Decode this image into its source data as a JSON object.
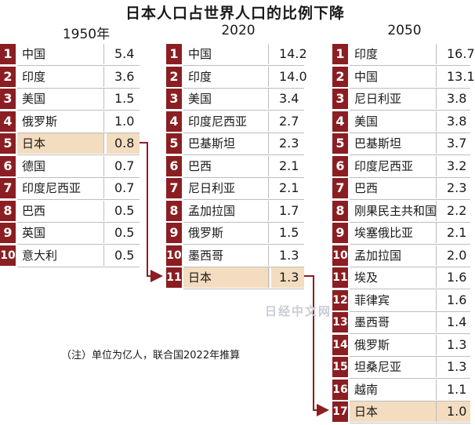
{
  "title": "日本人口占世界人口的比例下降",
  "columns": [
    {
      "year": "1950年",
      "rows": [
        {
          "rank": "1",
          "country": "中国",
          "value": "5.4"
        },
        {
          "rank": "2",
          "country": "印度",
          "value": "3.6"
        },
        {
          "rank": "3",
          "country": "美国",
          "value": "1.5"
        },
        {
          "rank": "4",
          "country": "俄罗斯",
          "value": "1.0"
        },
        {
          "rank": "5",
          "country": "日本",
          "value": "0.8",
          "highlight": true
        },
        {
          "rank": "6",
          "country": "德国",
          "value": "0.7"
        },
        {
          "rank": "7",
          "country": "印度尼西亚",
          "value": "0.7"
        },
        {
          "rank": "8",
          "country": "巴西",
          "value": "0.5"
        },
        {
          "rank": "9",
          "country": "英国",
          "value": "0.5"
        },
        {
          "rank": "10",
          "country": "意大利",
          "value": "0.5"
        }
      ]
    },
    {
      "year": "2020",
      "rows": [
        {
          "rank": "1",
          "country": "中国",
          "value": "14.2"
        },
        {
          "rank": "2",
          "country": "印度",
          "value": "14.0"
        },
        {
          "rank": "3",
          "country": "美国",
          "value": "3.4"
        },
        {
          "rank": "4",
          "country": "印度尼西亚",
          "value": "2.7"
        },
        {
          "rank": "5",
          "country": "巴基斯坦",
          "value": "2.3"
        },
        {
          "rank": "6",
          "country": "巴西",
          "value": "2.1"
        },
        {
          "rank": "7",
          "country": "尼日利亚",
          "value": "2.1"
        },
        {
          "rank": "8",
          "country": "孟加拉国",
          "value": "1.7"
        },
        {
          "rank": "9",
          "country": "俄罗斯",
          "value": "1.5"
        },
        {
          "rank": "10",
          "country": "墨西哥",
          "value": "1.3"
        },
        {
          "rank": "11",
          "country": "日本",
          "value": "1.3",
          "highlight": true
        }
      ]
    },
    {
      "year": "2050",
      "rows": [
        {
          "rank": "1",
          "country": "印度",
          "value": "16.7"
        },
        {
          "rank": "2",
          "country": "中国",
          "value": "13.1"
        },
        {
          "rank": "3",
          "country": "尼日利亚",
          "value": "3.8"
        },
        {
          "rank": "4",
          "country": "美国",
          "value": "3.8"
        },
        {
          "rank": "5",
          "country": "巴基斯坦",
          "value": "3.7"
        },
        {
          "rank": "6",
          "country": "印度尼西亚",
          "value": "3.2"
        },
        {
          "rank": "7",
          "country": "巴西",
          "value": "2.3"
        },
        {
          "rank": "8",
          "country": "刚果民主共和国",
          "value": "2.2"
        },
        {
          "rank": "9",
          "country": "埃塞俄比亚",
          "value": "2.1"
        },
        {
          "rank": "10",
          "country": "孟加拉国",
          "value": "2.0"
        },
        {
          "rank": "11",
          "country": "埃及",
          "value": "1.6"
        },
        {
          "rank": "12",
          "country": "菲律宾",
          "value": "1.6"
        },
        {
          "rank": "13",
          "country": "墨西哥",
          "value": "1.4"
        },
        {
          "rank": "14",
          "country": "俄罗斯",
          "value": "1.3"
        },
        {
          "rank": "15",
          "country": "坦桑尼亚",
          "value": "1.3"
        },
        {
          "rank": "16",
          "country": "越南",
          "value": "1.1"
        },
        {
          "rank": "17",
          "country": "日本",
          "value": "1.0",
          "highlight": true
        }
      ]
    }
  ],
  "note": "（注）单位为亿人，联合国2022年推算",
  "watermark": "日经中文网",
  "colors": {
    "rank_badge": "#8b1e22",
    "highlight": "#f3dcc0",
    "arrow": "#8b1e22"
  }
}
